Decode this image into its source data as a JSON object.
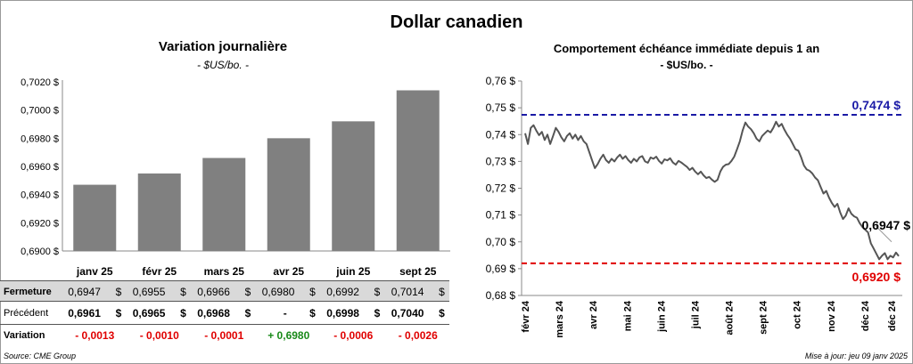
{
  "title": "Dollar canadien",
  "left": {
    "title": "Variation  journalière",
    "subtitle": "- $US/bo. -",
    "chart_data": {
      "type": "bar",
      "categories": [
        "janv 25",
        "févr 25",
        "mars 25",
        "avr 25",
        "juin 25",
        "sept 25"
      ],
      "values": [
        0.6947,
        0.6955,
        0.6966,
        0.698,
        0.6992,
        0.7014
      ],
      "ylim": [
        0.69,
        0.702
      ],
      "yticks": [
        "0,6900 $",
        "0,6920 $",
        "0,6940 $",
        "0,6960 $",
        "0,6980 $",
        "0,7000 $",
        "0,7020 $"
      ],
      "color": "#808080"
    },
    "table": {
      "fermeture_label": "Fermeture",
      "precedent_label": "Précédent",
      "variation_label": "Variation",
      "fermeture": [
        "0,6947",
        "0,6955",
        "0,6966",
        "0,6980",
        "0,6992",
        "0,7014"
      ],
      "precedent": [
        "0,6961",
        "0,6965",
        "0,6968",
        "-",
        "0,6998",
        "0,7040"
      ],
      "variation": [
        "- 0,0013",
        "- 0,0010",
        "- 0,0001",
        "+ 0,6980",
        "- 0,0006",
        "- 0,0026"
      ],
      "currency": "$"
    }
  },
  "right": {
    "title": "Comportement échéance immédiate depuis 1 an",
    "subtitle": "- $US/bo. -",
    "chart_data": {
      "type": "line",
      "ylim": [
        0.68,
        0.76
      ],
      "yticks": [
        "0,68 $",
        "0,69 $",
        "0,70 $",
        "0,71 $",
        "0,72 $",
        "0,73 $",
        "0,74 $",
        "0,75 $",
        "0,76 $"
      ],
      "xticks": [
        "févr 24",
        "mars 24",
        "avr 24",
        "mai 24",
        "juin 24",
        "juil 24",
        "août 24",
        "sept 24",
        "oct 24",
        "nov 24",
        "déc 24",
        "déc 24"
      ],
      "series": [
        {
          "color": "#555555",
          "values": [
            0.7405,
            0.7365,
            0.7425,
            0.7435,
            0.7415,
            0.7398,
            0.741,
            0.738,
            0.74,
            0.7365,
            0.7395,
            0.7425,
            0.741,
            0.739,
            0.7375,
            0.7395,
            0.7405,
            0.7385,
            0.74,
            0.738,
            0.7395,
            0.7375,
            0.7365,
            0.7335,
            0.7305,
            0.7275,
            0.729,
            0.731,
            0.7325,
            0.7305,
            0.7295,
            0.731,
            0.73,
            0.7315,
            0.7325,
            0.731,
            0.732,
            0.7305,
            0.7295,
            0.731,
            0.73,
            0.7315,
            0.732,
            0.73,
            0.7295,
            0.7315,
            0.731,
            0.7318,
            0.7302,
            0.7292,
            0.7308,
            0.7304,
            0.7312,
            0.7296,
            0.7288,
            0.7302,
            0.7296,
            0.7288,
            0.728,
            0.7268,
            0.7276,
            0.7262,
            0.7252,
            0.7262,
            0.7248,
            0.7238,
            0.7242,
            0.7232,
            0.7224,
            0.7232,
            0.7262,
            0.728,
            0.7288,
            0.729,
            0.7302,
            0.7318,
            0.7345,
            0.7375,
            0.7415,
            0.7445,
            0.743,
            0.742,
            0.7405,
            0.7385,
            0.7375,
            0.7395,
            0.7405,
            0.7415,
            0.7408,
            0.7425,
            0.7448,
            0.743,
            0.744,
            0.7418,
            0.74,
            0.7385,
            0.7365,
            0.7345,
            0.734,
            0.7315,
            0.7285,
            0.727,
            0.7265,
            0.7255,
            0.724,
            0.723,
            0.7205,
            0.718,
            0.719,
            0.7165,
            0.7145,
            0.713,
            0.7142,
            0.711,
            0.7085,
            0.7098,
            0.7125,
            0.7105,
            0.7095,
            0.709,
            0.707,
            0.7055,
            0.7045,
            0.7035,
            0.6995,
            0.6975,
            0.6955,
            0.6935,
            0.6948,
            0.6958,
            0.6935,
            0.6948,
            0.6942,
            0.696,
            0.6947
          ]
        }
      ],
      "lines": [
        {
          "value": 0.7474,
          "label": "0,7474 $",
          "color": "#1a1aa6"
        },
        {
          "value": 0.692,
          "label": "0,6920 $",
          "color": "#e00000"
        }
      ],
      "last_label": "0,6947 $"
    }
  },
  "footer": {
    "source": "Source: CME Group",
    "updated": "Mise à jour: jeu 09 janv 2025"
  }
}
